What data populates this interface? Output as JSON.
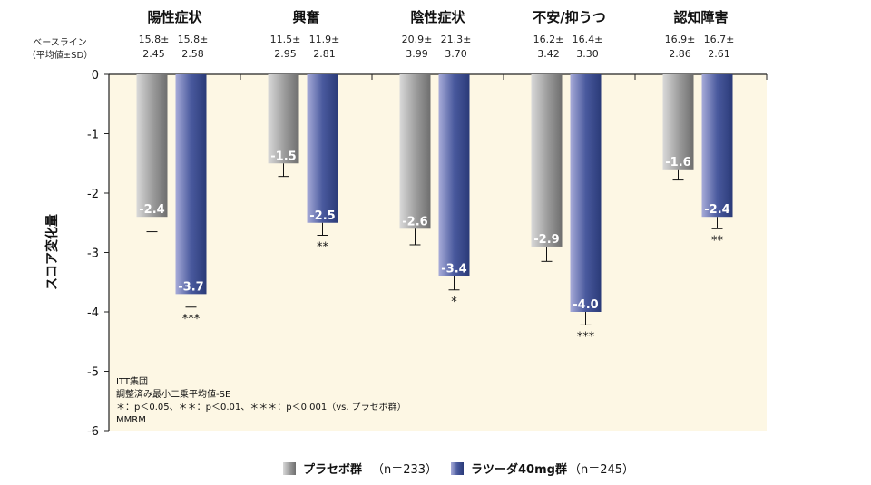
{
  "chart_data": {
    "type": "bar",
    "categories": [
      "陽性症状",
      "興奮",
      "陰性症状",
      "不安/抑うつ",
      "認知障害"
    ],
    "series": [
      {
        "name": "プラセボ群",
        "n_label": "（n＝233）",
        "values": [
          -2.4,
          -1.5,
          -2.6,
          -2.9,
          -1.6
        ],
        "se": [
          0.25,
          0.22,
          0.27,
          0.25,
          0.18
        ],
        "value_labels": [
          "-2.4",
          "-1.5",
          "-2.6",
          "-2.9",
          "-1.6"
        ],
        "baseline": [
          [
            "15.8±",
            "2.45"
          ],
          [
            "11.5±",
            "2.95"
          ],
          [
            "20.9±",
            "3.99"
          ],
          [
            "16.2±",
            "3.42"
          ],
          [
            "16.9±",
            "2.86"
          ]
        ],
        "significance": [
          "",
          "",
          "",
          "",
          ""
        ],
        "color": "#888888"
      },
      {
        "name": "ラツーダ40mg群",
        "n_label": "（n＝245）",
        "values": [
          -3.7,
          -2.5,
          -3.4,
          -4.0,
          -2.4
        ],
        "se": [
          0.22,
          0.21,
          0.23,
          0.22,
          0.2
        ],
        "value_labels": [
          "-3.7",
          "-2.5",
          "-3.4",
          "-4.0",
          "-2.4"
        ],
        "baseline": [
          [
            "15.8±",
            "2.58"
          ],
          [
            "11.9±",
            "2.81"
          ],
          [
            "21.3±",
            "3.70"
          ],
          [
            "16.4±",
            "3.30"
          ],
          [
            "16.7±",
            "2.61"
          ]
        ],
        "significance": [
          "***",
          "**",
          "*",
          "***",
          "**"
        ],
        "color": "#2e3f7c"
      }
    ],
    "ylabel": "スコア変化量",
    "yticks": [
      "0",
      "-1",
      "-2",
      "-3",
      "-4",
      "-5",
      "-6"
    ],
    "ylim": [
      -6,
      0
    ],
    "baseline_label": [
      "ベースライン",
      "（平均値±SD）"
    ],
    "footnotes": [
      "ITT集団",
      "調整済み最小二乗平均値-SE",
      "＊：p＜0.05、＊＊：p＜0.01、＊＊＊：p＜0.001（vs. プラセボ群）",
      "MMRM"
    ],
    "background_color": "#fdf7e4"
  }
}
